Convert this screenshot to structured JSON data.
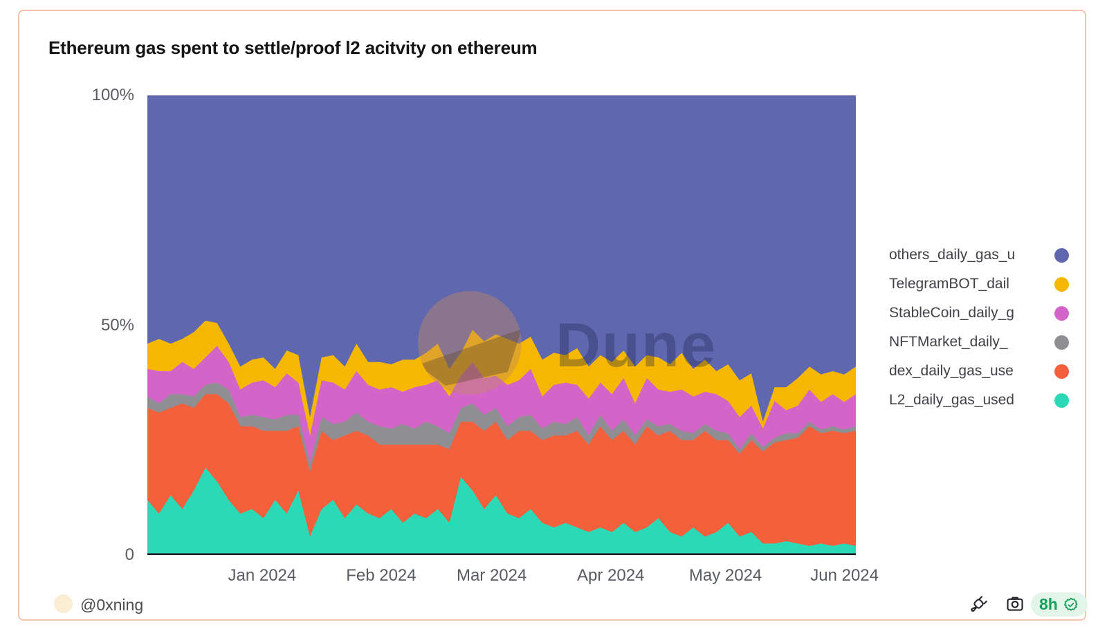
{
  "title": "Ethereum gas spent to settle/proof l2 acitvity on ethereum",
  "watermark": {
    "text": "Dune"
  },
  "colors": {
    "card_border": "#f3c3ae",
    "title_text": "#141414",
    "axis_label": "#585b60",
    "axis_line": "#191c24",
    "legend_text": "#3f4146",
    "badge_green": "#16a05a",
    "badge_bg": "#e3f4e9",
    "avatar_bg": "#fbecd4",
    "icon_dark": "#24262b"
  },
  "chart_data": {
    "type": "area",
    "stacked": true,
    "normalized_percent": true,
    "grid": false,
    "legend_position": "right",
    "x_range": [
      "2023-12-02",
      "2024-06-04"
    ],
    "point_interval_days": 3,
    "ylim": [
      0,
      100
    ],
    "yticks": [
      {
        "label": "100%",
        "pos": 0
      },
      {
        "label": "50%",
        "pos": 0.5
      },
      {
        "label": "0",
        "pos": 1
      }
    ],
    "xticks": [
      {
        "label": "Jan 2024",
        "pos": 0.162
      },
      {
        "label": "Feb 2024",
        "pos": 0.33
      },
      {
        "label": "Mar 2024",
        "pos": 0.486
      },
      {
        "label": "Apr 2024",
        "pos": 0.654
      },
      {
        "label": "May 2024",
        "pos": 0.816
      },
      {
        "label": "Jun 2024",
        "pos": 0.984
      }
    ],
    "series": [
      {
        "name": "L2_daily_gas_used",
        "color": "#2bd9b6",
        "values": [
          12,
          9,
          13,
          10,
          14,
          19,
          16,
          12,
          9,
          10,
          8,
          12,
          9,
          14,
          4,
          10,
          12,
          8,
          11,
          9,
          8,
          10,
          7,
          9,
          8,
          10,
          7,
          17,
          14,
          10,
          13,
          9,
          8,
          10,
          7,
          6,
          7,
          6,
          5,
          6,
          5,
          7,
          5,
          6,
          8,
          5,
          4,
          6,
          4,
          5,
          7,
          4,
          5,
          2.5,
          2.5,
          3,
          2.5,
          2,
          2.5,
          2,
          2.5,
          2
        ]
      },
      {
        "name": "dex_daily_gas_use",
        "color": "#f4603c",
        "values": [
          20,
          22,
          19,
          23,
          18,
          16,
          19,
          21,
          19,
          18,
          19,
          15,
          18,
          14,
          14,
          17,
          13,
          18,
          16,
          17,
          16,
          14,
          17,
          15,
          16,
          14,
          16,
          12,
          15,
          17,
          16,
          16,
          19,
          17,
          18,
          20,
          19,
          21,
          19,
          22,
          20,
          20,
          19,
          22,
          18,
          22,
          21,
          19,
          23,
          20,
          18,
          18,
          20,
          20,
          22,
          22,
          23,
          26,
          24,
          25,
          24,
          25
        ]
      },
      {
        "name": "NFTMarket_daily_",
        "color": "#8f8f93",
        "values": [
          2.5,
          2,
          3,
          2,
          2.5,
          2,
          2.5,
          3,
          2,
          2.5,
          3,
          2.5,
          3.5,
          2.5,
          2,
          3,
          3.5,
          3,
          4,
          3,
          4,
          3.5,
          4.5,
          3.5,
          5,
          4,
          3.5,
          3,
          4,
          3.5,
          3,
          3,
          3,
          3.5,
          2.5,
          3,
          2.5,
          3,
          2,
          2.5,
          2,
          2.5,
          2,
          1.5,
          2,
          1.5,
          2,
          1.5,
          1.5,
          2,
          1.5,
          1,
          1.5,
          1,
          1,
          1.5,
          1,
          1,
          0.8,
          1,
          0.8,
          1
        ]
      },
      {
        "name": "StableCoin_daily_g",
        "color": "#d564c8",
        "values": [
          6,
          7,
          5,
          7,
          6,
          6,
          8,
          6,
          6,
          7,
          8,
          7,
          9,
          7,
          6,
          8,
          9,
          7,
          9,
          8,
          8,
          9,
          7,
          9,
          8,
          10,
          8,
          7,
          9,
          8,
          7,
          9,
          8,
          10,
          7,
          8,
          9,
          7,
          8,
          7,
          8,
          9,
          7,
          9,
          8,
          7,
          9,
          8,
          7,
          8,
          7,
          7,
          6,
          4,
          8,
          5,
          6,
          7,
          6,
          7,
          6,
          7
        ]
      },
      {
        "name": "TelegramBOT_dail",
        "color": "#f5b700",
        "values": [
          5.5,
          7,
          6,
          5,
          8,
          8,
          5,
          4,
          5,
          5,
          5,
          4,
          5,
          6,
          4,
          5,
          6,
          5,
          6,
          5,
          6,
          5,
          7,
          6,
          7,
          8,
          6,
          5,
          7,
          8,
          9,
          10,
          8,
          7,
          8,
          7,
          6,
          8,
          7,
          6,
          7,
          6,
          8,
          5,
          7,
          6,
          8,
          6,
          7,
          5,
          8,
          8,
          7,
          1.5,
          3,
          5,
          6,
          5,
          6,
          5,
          6,
          6
        ]
      },
      {
        "name": "others_daily_gas_u",
        "color": "#5f67af",
        "remainder_to_100": true
      }
    ]
  },
  "legend": [
    {
      "label": "others_daily_gas_u",
      "color": "#5f67af"
    },
    {
      "label": "TelegramBOT_dail",
      "color": "#f5b700"
    },
    {
      "label": "StableCoin_daily_g",
      "color": "#d564c8"
    },
    {
      "label": "NFTMarket_daily_",
      "color": "#8f8f93"
    },
    {
      "label": "dex_daily_gas_use",
      "color": "#f4603c"
    },
    {
      "label": "L2_daily_gas_used",
      "color": "#2bd9b6"
    }
  ],
  "footer": {
    "username": "@0xning",
    "badge_text": "8h"
  }
}
